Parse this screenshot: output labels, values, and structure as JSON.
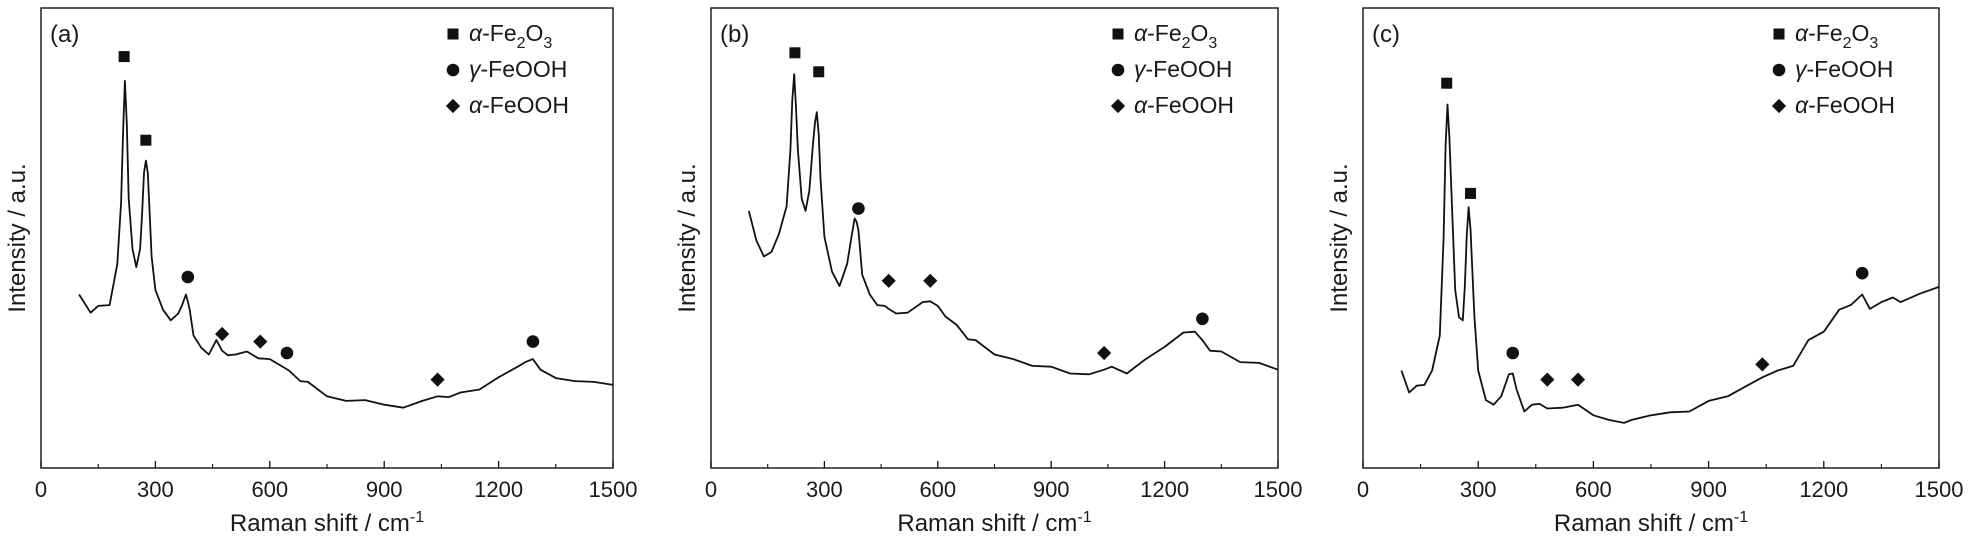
{
  "chart_data": [
    {
      "type": "line",
      "panel_label": "(a)",
      "xlabel": "Raman shift / cm",
      "xlabel_sup": "-1",
      "ylabel": "Intensity / a.u.",
      "xlim": [
        0,
        1500
      ],
      "ylim": [
        0,
        1
      ],
      "xticks": [
        0,
        300,
        600,
        900,
        1200,
        1500
      ],
      "grid": false,
      "legend_position": "top-right",
      "legend": [
        {
          "marker": "square",
          "prefix": "α",
          "text": "-Fe",
          "sub1": "2",
          "mid": "O",
          "sub2": "3"
        },
        {
          "marker": "circle",
          "prefix": "γ",
          "text": "-FeOOH"
        },
        {
          "marker": "diamond",
          "prefix": "α",
          "text": "-FeOOH"
        }
      ],
      "x": [
        100,
        130,
        150,
        180,
        200,
        210,
        215,
        220,
        225,
        230,
        240,
        250,
        260,
        265,
        270,
        275,
        280,
        285,
        290,
        300,
        320,
        340,
        360,
        370,
        380,
        385,
        390,
        400,
        420,
        440,
        460,
        475,
        490,
        510,
        540,
        570,
        600,
        630,
        650,
        680,
        700,
        750,
        800,
        850,
        900,
        950,
        1000,
        1040,
        1070,
        1100,
        1150,
        1200,
        1250,
        1270,
        1290,
        1310,
        1350,
        1400,
        1450,
        1500
      ],
      "y": [
        0.4,
        0.36,
        0.37,
        0.38,
        0.48,
        0.65,
        0.82,
        0.97,
        0.85,
        0.66,
        0.52,
        0.48,
        0.52,
        0.62,
        0.72,
        0.76,
        0.72,
        0.62,
        0.5,
        0.42,
        0.36,
        0.34,
        0.35,
        0.38,
        0.4,
        0.39,
        0.36,
        0.3,
        0.26,
        0.25,
        0.28,
        0.26,
        0.24,
        0.25,
        0.25,
        0.24,
        0.23,
        0.22,
        0.2,
        0.18,
        0.17,
        0.14,
        0.12,
        0.13,
        0.11,
        0.11,
        0.12,
        0.14,
        0.13,
        0.15,
        0.15,
        0.19,
        0.21,
        0.23,
        0.23,
        0.21,
        0.18,
        0.18,
        0.17,
        0.17
      ],
      "markers": [
        {
          "x": 218,
          "y": 1.03,
          "type": "square"
        },
        {
          "x": 275,
          "y": 0.81,
          "type": "square"
        },
        {
          "x": 385,
          "y": 0.45,
          "type": "circle"
        },
        {
          "x": 475,
          "y": 0.3,
          "type": "diamond"
        },
        {
          "x": 575,
          "y": 0.28,
          "type": "diamond"
        },
        {
          "x": 645,
          "y": 0.25,
          "type": "circle"
        },
        {
          "x": 1040,
          "y": 0.18,
          "type": "diamond"
        },
        {
          "x": 1290,
          "y": 0.28,
          "type": "circle"
        }
      ]
    },
    {
      "type": "line",
      "panel_label": "(b)",
      "xlabel": "Raman shift / cm",
      "xlabel_sup": "-1",
      "ylabel": "Intensity / a.u.",
      "xlim": [
        0,
        1500
      ],
      "ylim": [
        0,
        1
      ],
      "xticks": [
        0,
        300,
        600,
        900,
        1200,
        1500
      ],
      "grid": false,
      "legend_position": "top-right",
      "legend": [
        {
          "marker": "square",
          "prefix": "α",
          "text": "-Fe",
          "sub1": "2",
          "mid": "O",
          "sub2": "3"
        },
        {
          "marker": "circle",
          "prefix": "γ",
          "text": "-FeOOH"
        },
        {
          "marker": "diamond",
          "prefix": "α",
          "text": "-FeOOH"
        }
      ],
      "x": [
        100,
        120,
        140,
        160,
        180,
        200,
        210,
        215,
        220,
        225,
        230,
        240,
        250,
        260,
        270,
        275,
        280,
        285,
        290,
        300,
        320,
        340,
        360,
        370,
        380,
        385,
        390,
        400,
        420,
        440,
        460,
        470,
        490,
        520,
        560,
        580,
        600,
        620,
        650,
        680,
        700,
        750,
        800,
        850,
        900,
        950,
        1000,
        1040,
        1060,
        1100,
        1150,
        1200,
        1250,
        1280,
        1300,
        1320,
        1350,
        1400,
        1450,
        1500
      ],
      "y": [
        0.62,
        0.55,
        0.5,
        0.52,
        0.56,
        0.64,
        0.78,
        0.92,
        0.98,
        0.9,
        0.78,
        0.66,
        0.62,
        0.68,
        0.8,
        0.86,
        0.88,
        0.83,
        0.7,
        0.56,
        0.46,
        0.43,
        0.48,
        0.55,
        0.6,
        0.6,
        0.57,
        0.46,
        0.4,
        0.38,
        0.37,
        0.37,
        0.35,
        0.36,
        0.38,
        0.39,
        0.37,
        0.35,
        0.32,
        0.29,
        0.28,
        0.25,
        0.23,
        0.22,
        0.21,
        0.2,
        0.19,
        0.21,
        0.21,
        0.2,
        0.23,
        0.27,
        0.3,
        0.31,
        0.28,
        0.26,
        0.25,
        0.23,
        0.22,
        0.21
      ],
      "markers": [
        {
          "x": 222,
          "y": 1.04,
          "type": "square"
        },
        {
          "x": 285,
          "y": 0.99,
          "type": "square"
        },
        {
          "x": 390,
          "y": 0.63,
          "type": "circle"
        },
        {
          "x": 470,
          "y": 0.44,
          "type": "diamond"
        },
        {
          "x": 580,
          "y": 0.44,
          "type": "diamond"
        },
        {
          "x": 1040,
          "y": 0.25,
          "type": "diamond"
        },
        {
          "x": 1300,
          "y": 0.34,
          "type": "circle"
        }
      ]
    },
    {
      "type": "line",
      "panel_label": "(c)",
      "xlabel": "Raman shift / cm",
      "xlabel_sup": "-1",
      "ylabel": "Intensity / a.u.",
      "xlim": [
        0,
        1500
      ],
      "ylim": [
        0,
        1
      ],
      "xticks": [
        0,
        300,
        600,
        900,
        1200,
        1500
      ],
      "grid": false,
      "legend_position": "top-right",
      "legend": [
        {
          "marker": "square",
          "prefix": "α",
          "text": "-Fe",
          "sub1": "2",
          "mid": "O",
          "sub2": "3"
        },
        {
          "marker": "circle",
          "prefix": "γ",
          "text": "-FeOOH"
        },
        {
          "marker": "diamond",
          "prefix": "α",
          "text": "-FeOOH"
        }
      ],
      "x": [
        100,
        120,
        140,
        160,
        180,
        200,
        210,
        215,
        220,
        225,
        230,
        240,
        250,
        260,
        265,
        270,
        275,
        280,
        285,
        290,
        300,
        320,
        340,
        360,
        380,
        390,
        400,
        420,
        440,
        460,
        480,
        520,
        560,
        600,
        640,
        680,
        700,
        750,
        800,
        850,
        900,
        950,
        1000,
        1040,
        1080,
        1120,
        1160,
        1200,
        1240,
        1270,
        1300,
        1320,
        1350,
        1380,
        1400,
        1450,
        1500
      ],
      "y": [
        0.2,
        0.15,
        0.16,
        0.17,
        0.2,
        0.3,
        0.55,
        0.8,
        0.9,
        0.82,
        0.68,
        0.42,
        0.34,
        0.34,
        0.42,
        0.56,
        0.63,
        0.58,
        0.46,
        0.35,
        0.2,
        0.13,
        0.11,
        0.14,
        0.19,
        0.2,
        0.15,
        0.1,
        0.11,
        0.12,
        0.1,
        0.11,
        0.11,
        0.09,
        0.07,
        0.07,
        0.07,
        0.09,
        0.09,
        0.1,
        0.12,
        0.14,
        0.16,
        0.19,
        0.2,
        0.22,
        0.28,
        0.31,
        0.36,
        0.38,
        0.4,
        0.37,
        0.38,
        0.4,
        0.38,
        0.41,
        0.42
      ],
      "markers": [
        {
          "x": 218,
          "y": 0.96,
          "type": "square"
        },
        {
          "x": 280,
          "y": 0.67,
          "type": "square"
        },
        {
          "x": 390,
          "y": 0.25,
          "type": "circle"
        },
        {
          "x": 480,
          "y": 0.18,
          "type": "diamond"
        },
        {
          "x": 560,
          "y": 0.18,
          "type": "diamond"
        },
        {
          "x": 1040,
          "y": 0.22,
          "type": "diamond"
        },
        {
          "x": 1300,
          "y": 0.46,
          "type": "circle"
        }
      ]
    }
  ]
}
